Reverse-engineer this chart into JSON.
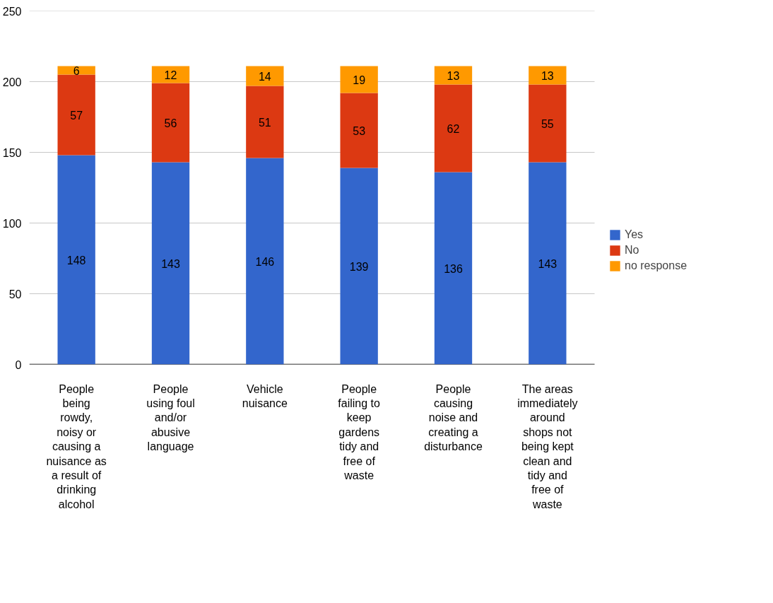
{
  "chart_data": {
    "type": "bar",
    "stacked": true,
    "categories": [
      "People being rowdy, noisy or causing a nuisance as a result of drinking alcohol",
      "People using foul and/or abusive language",
      "Vehicle nuisance",
      "People failing to keep gardens tidy and free of waste",
      "People causing noise and creating a disturbance",
      "The areas immediately around shops not being kept clean and tidy and free of waste"
    ],
    "series": [
      {
        "name": "Yes",
        "color": "#3366cc",
        "values": [
          148,
          143,
          146,
          139,
          136,
          143
        ]
      },
      {
        "name": "No",
        "color": "#dc3912",
        "values": [
          57,
          56,
          51,
          53,
          62,
          55
        ]
      },
      {
        "name": "no response",
        "color": "#ff9900",
        "values": [
          6,
          12,
          14,
          19,
          13,
          13
        ]
      }
    ],
    "ylim": [
      0,
      250
    ],
    "yticks": [
      0,
      50,
      100,
      150,
      200,
      250
    ],
    "grid": "y",
    "legend": "right",
    "data_labels": true
  }
}
